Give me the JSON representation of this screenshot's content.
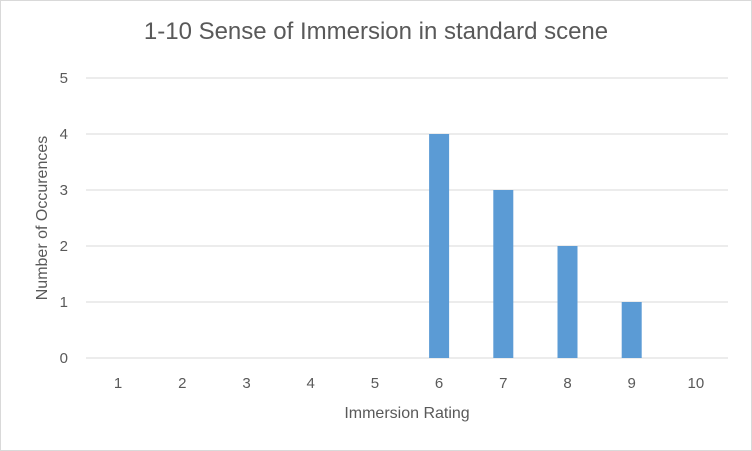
{
  "chart_data": {
    "type": "bar",
    "title": "1-10 Sense of Immersion in standard scene",
    "xlabel": "Immersion Rating",
    "ylabel": "Number of Occurences",
    "categories": [
      "1",
      "2",
      "3",
      "4",
      "5",
      "6",
      "7",
      "8",
      "9",
      "10"
    ],
    "values": [
      0,
      0,
      0,
      0,
      0,
      4,
      3,
      2,
      1,
      0
    ],
    "ylim": [
      0,
      5
    ],
    "yticks": [
      "0",
      "1",
      "2",
      "3",
      "4",
      "5"
    ],
    "grid": true,
    "bar_color": "#5b9bd5",
    "grid_color": "#d9d9d9",
    "text_color": "#595959"
  }
}
